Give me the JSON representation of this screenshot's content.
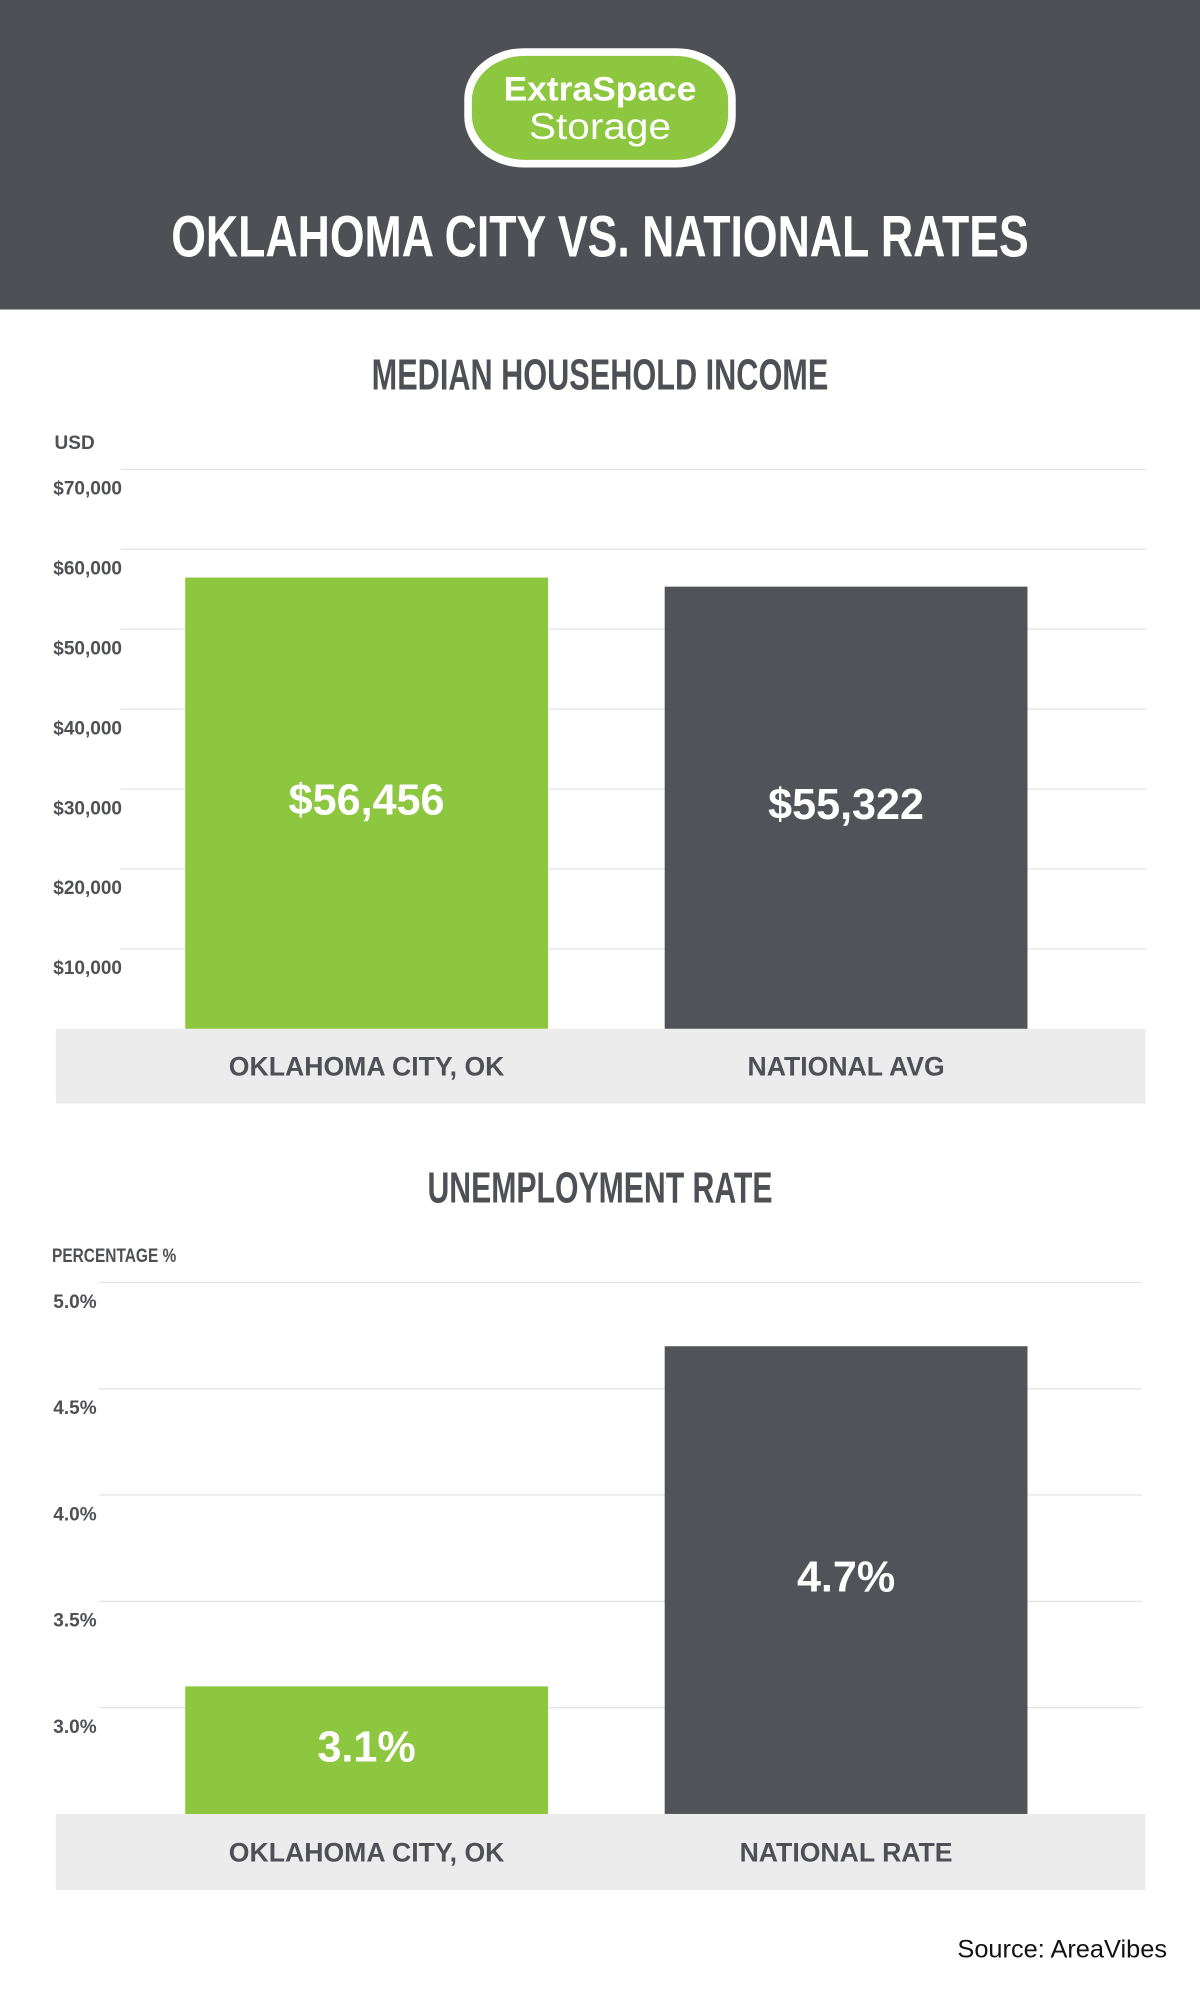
{
  "header": {
    "logo_line1": "ExtraSpace",
    "logo_line2": "Storage",
    "title": "OKLAHOMA CITY VS. NATIONAL RATES"
  },
  "chart_data": [
    {
      "type": "bar",
      "title": "MEDIAN HOUSEHOLD INCOME",
      "y_label": "USD",
      "categories": [
        "OKLAHOMA CITY, OK",
        "NATIONAL AVG"
      ],
      "values": [
        56456,
        55322
      ],
      "value_labels": [
        "$56,456",
        "$55,322"
      ],
      "colors": [
        "#8dc63f",
        "#525358"
      ],
      "ylim": [
        0,
        70000
      ],
      "yticks": [
        {
          "value": 10000,
          "label": "$10,000"
        },
        {
          "value": 20000,
          "label": "$20,000"
        },
        {
          "value": 30000,
          "label": "$30,000"
        },
        {
          "value": 40000,
          "label": "$40,000"
        },
        {
          "value": 50000,
          "label": "$50,000"
        },
        {
          "value": 60000,
          "label": "$60,000"
        },
        {
          "value": 70000,
          "label": "$70,000"
        }
      ],
      "grid": true
    },
    {
      "type": "bar",
      "title": "UNEMPLOYMENT RATE",
      "y_label": "PERCENTAGE %",
      "categories": [
        "OKLAHOMA CITY, OK",
        "NATIONAL RATE"
      ],
      "values": [
        3.1,
        4.7
      ],
      "value_labels": [
        "3.1%",
        "4.7%"
      ],
      "colors": [
        "#8dc63f",
        "#525358"
      ],
      "ylim": [
        2.5,
        5.0
      ],
      "yticks": [
        {
          "value": 3.0,
          "label": "3.0%"
        },
        {
          "value": 3.5,
          "label": "3.5%"
        },
        {
          "value": 4.0,
          "label": "4.0%"
        },
        {
          "value": 4.5,
          "label": "4.5%"
        },
        {
          "value": 5.0,
          "label": "5.0%"
        }
      ],
      "grid": true
    }
  ],
  "source": "Source: AreaVibes"
}
